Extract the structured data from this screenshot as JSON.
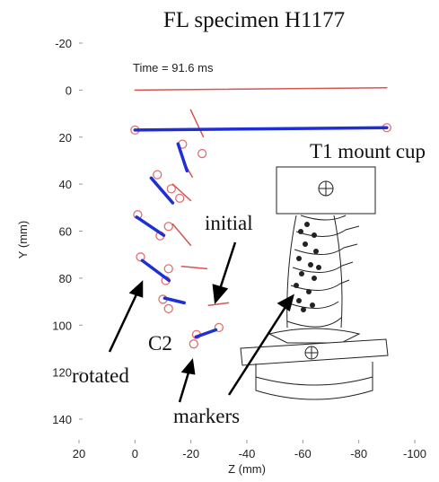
{
  "chart_data": {
    "type": "line",
    "title": "FL specimen H1177",
    "xlabel": "Z (mm)",
    "ylabel": "Y (mm)",
    "xlim": [
      20,
      -100
    ],
    "xticks": [
      20,
      0,
      -20,
      -40,
      -60,
      -80,
      -100
    ],
    "ylim": [
      140,
      -20
    ],
    "yticks": [
      -20,
      0,
      20,
      40,
      60,
      80,
      100,
      120,
      140
    ],
    "series": [
      {
        "color": "#d9534f",
        "width": 1.5,
        "x": [
          0,
          -90,
          null,
          -19.9,
          -24.4,
          null,
          -17.6,
          -20.5,
          null,
          -13.5,
          -19.9,
          null,
          -13.5,
          -19.9,
          null,
          -16.7,
          -25.7,
          null,
          -26.3,
          -33.4
        ],
        "values": [
          0,
          -1,
          null,
          8.4,
          19.8,
          null,
          31,
          37,
          null,
          40,
          47,
          null,
          57,
          66,
          null,
          75,
          76,
          null,
          91.6,
          90.5
        ]
      },
      {
        "color": "#1f2fd6",
        "width": 3.5,
        "x": [
          0,
          -90,
          null,
          -15.4,
          -18.6,
          null,
          -5.8,
          -13.5,
          null,
          -0.6,
          -10.3,
          null,
          -2.6,
          -12.2,
          null,
          -10.6,
          -17.6,
          null,
          -21.8,
          -28.9
        ],
        "values": [
          17,
          16,
          null,
          22.9,
          34.4,
          null,
          37.4,
          48,
          null,
          54,
          61.8,
          null,
          72.5,
          81,
          null,
          88.5,
          90.5,
          null,
          105,
          102
        ]
      }
    ],
    "markers": {
      "color": "#e07070",
      "x": [
        0,
        -90,
        -17,
        -24,
        -8,
        -13,
        -16,
        -1,
        -12,
        -9,
        -2,
        -12,
        -11,
        -10,
        -12,
        -22,
        -30,
        -21
      ],
      "values": [
        17,
        16,
        23,
        27,
        36,
        42,
        46,
        53,
        58,
        62,
        71,
        76,
        81,
        89,
        93,
        104,
        101,
        108
      ]
    },
    "annotations": [
      "Time = 91.6  ms",
      "T1 mount cup",
      "initial",
      "C2",
      "rotated",
      "markers"
    ]
  }
}
